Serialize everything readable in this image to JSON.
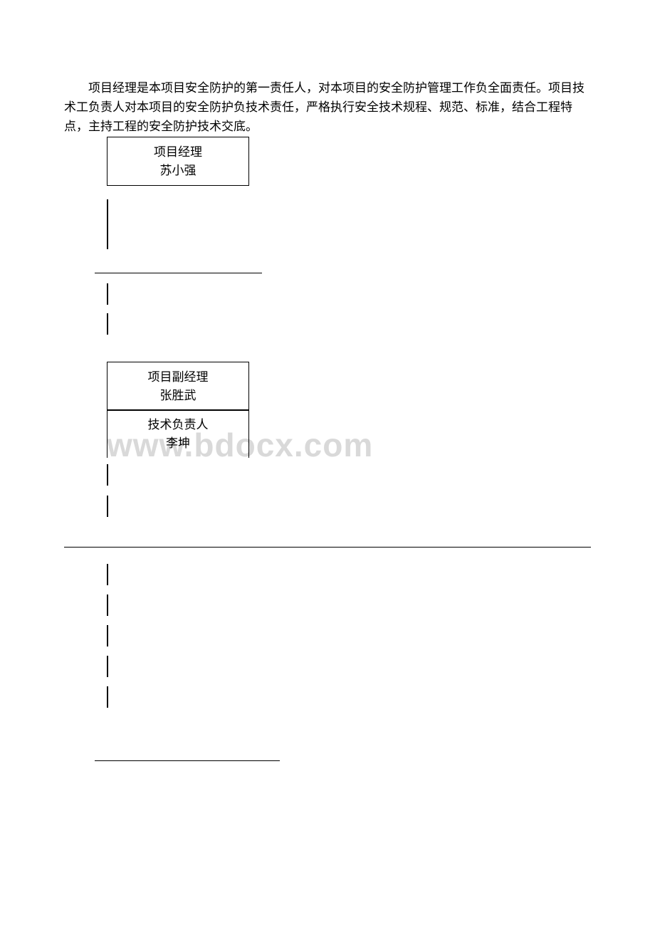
{
  "intro": "项目经理是本项目安全防护的第一责任人，对本项目的安全防护管理工作负全面责任。项目技术工负责人对本项目的安全防护负技术责任，严格执行安全技术规程、规范、标准，结合工程特点，主持工程的安全防护技术交底。",
  "boxes": {
    "box1": {
      "title": "项目经理",
      "name": "苏小强"
    },
    "box2": {
      "title": "项目副经理",
      "name": "张胜武"
    },
    "box3": {
      "title": "技术负责人",
      "name": "李坤"
    }
  },
  "watermark": "www.bdocx.com",
  "colors": {
    "text": "#000000",
    "background": "#ffffff",
    "watermark": "#d9d9d9",
    "border": "#000000"
  }
}
